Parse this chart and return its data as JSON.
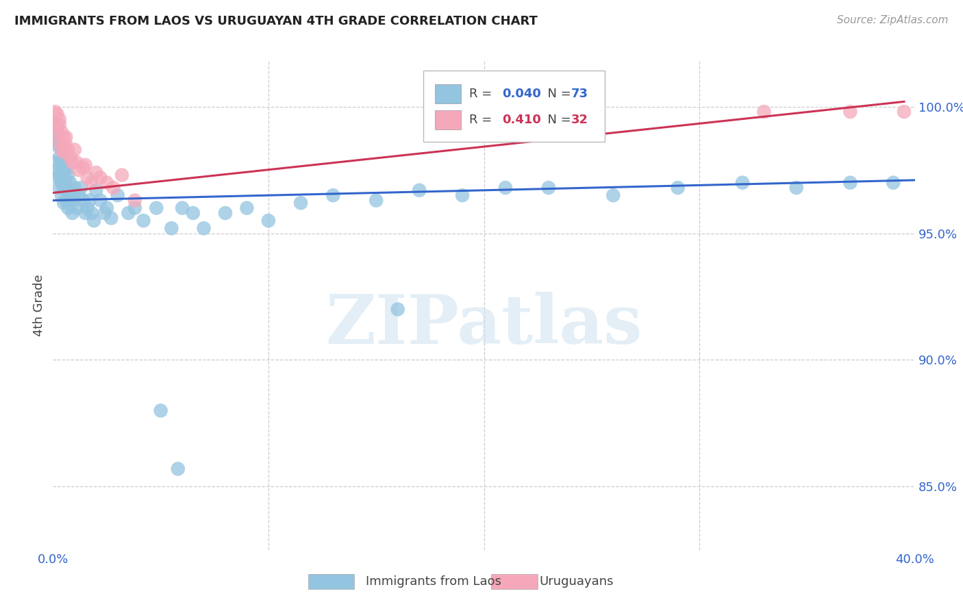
{
  "title": "IMMIGRANTS FROM LAOS VS URUGUAYAN 4TH GRADE CORRELATION CHART",
  "source": "Source: ZipAtlas.com",
  "ylabel": "4th Grade",
  "ytick_labels": [
    "85.0%",
    "90.0%",
    "95.0%",
    "100.0%"
  ],
  "ytick_values": [
    0.85,
    0.9,
    0.95,
    1.0
  ],
  "xlim": [
    0.0,
    0.4
  ],
  "ylim": [
    0.825,
    1.018
  ],
  "legend_blue_label": "Immigrants from Laos",
  "legend_pink_label": "Uruguayans",
  "R_blue": "0.040",
  "N_blue": "73",
  "R_pink": "0.410",
  "N_pink": "32",
  "blue_color": "#93c4e0",
  "pink_color": "#f5a8ba",
  "line_blue_color": "#3366cc",
  "line_pink_color": "#cc3355",
  "blue_scatter_x": [
    0.001,
    0.001,
    0.001,
    0.002,
    0.002,
    0.002,
    0.002,
    0.003,
    0.003,
    0.003,
    0.003,
    0.004,
    0.004,
    0.004,
    0.004,
    0.005,
    0.005,
    0.005,
    0.005,
    0.006,
    0.006,
    0.006,
    0.007,
    0.007,
    0.007,
    0.008,
    0.008,
    0.009,
    0.009,
    0.01,
    0.01,
    0.011,
    0.012,
    0.013,
    0.014,
    0.015,
    0.016,
    0.017,
    0.018,
    0.019,
    0.02,
    0.022,
    0.024,
    0.025,
    0.027,
    0.03,
    0.035,
    0.038,
    0.042,
    0.048,
    0.055,
    0.06,
    0.065,
    0.07,
    0.08,
    0.09,
    0.1,
    0.115,
    0.13,
    0.15,
    0.17,
    0.19,
    0.21,
    0.23,
    0.26,
    0.29,
    0.32,
    0.345,
    0.37,
    0.39,
    0.05,
    0.058,
    0.16
  ],
  "blue_scatter_y": [
    0.99,
    0.985,
    0.978,
    0.992,
    0.988,
    0.975,
    0.972,
    0.985,
    0.98,
    0.973,
    0.968,
    0.983,
    0.978,
    0.97,
    0.965,
    0.98,
    0.975,
    0.968,
    0.962,
    0.975,
    0.97,
    0.963,
    0.973,
    0.967,
    0.96,
    0.97,
    0.963,
    0.965,
    0.958,
    0.968,
    0.963,
    0.96,
    0.965,
    0.968,
    0.963,
    0.958,
    0.96,
    0.963,
    0.958,
    0.955,
    0.967,
    0.963,
    0.958,
    0.96,
    0.956,
    0.965,
    0.958,
    0.96,
    0.955,
    0.96,
    0.952,
    0.96,
    0.958,
    0.952,
    0.958,
    0.96,
    0.955,
    0.962,
    0.965,
    0.963,
    0.967,
    0.965,
    0.968,
    0.968,
    0.965,
    0.968,
    0.97,
    0.968,
    0.97,
    0.97,
    0.88,
    0.857,
    0.92
  ],
  "pink_scatter_x": [
    0.001,
    0.001,
    0.002,
    0.002,
    0.003,
    0.003,
    0.004,
    0.004,
    0.005,
    0.005,
    0.006,
    0.007,
    0.008,
    0.009,
    0.01,
    0.011,
    0.012,
    0.014,
    0.016,
    0.018,
    0.02,
    0.025,
    0.028,
    0.032,
    0.038,
    0.015,
    0.022,
    0.006,
    0.33,
    0.37,
    0.395,
    0.003
  ],
  "pink_scatter_y": [
    0.998,
    0.993,
    0.997,
    0.99,
    0.993,
    0.986,
    0.99,
    0.983,
    0.988,
    0.982,
    0.985,
    0.983,
    0.98,
    0.978,
    0.983,
    0.978,
    0.975,
    0.976,
    0.972,
    0.97,
    0.974,
    0.97,
    0.968,
    0.973,
    0.963,
    0.977,
    0.972,
    0.988,
    0.998,
    0.998,
    0.998,
    0.995
  ],
  "blue_line_x": [
    0.0,
    0.4
  ],
  "blue_line_y": [
    0.963,
    0.971
  ],
  "pink_line_x": [
    0.0,
    0.395
  ],
  "pink_line_y": [
    0.966,
    1.002
  ],
  "watermark": "ZIPatlas",
  "bg_color": "#ffffff",
  "grid_color": "#cccccc"
}
